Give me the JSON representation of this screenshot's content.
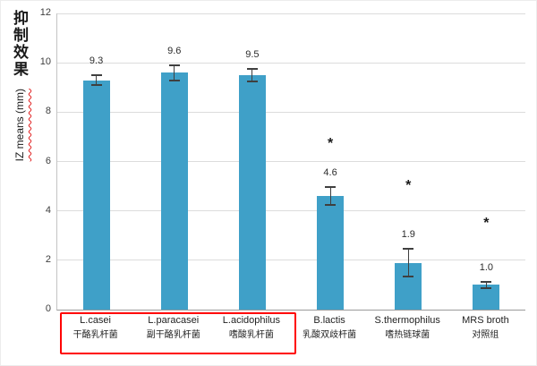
{
  "chart_data": {
    "type": "bar",
    "title": "",
    "ylabel_cn": "抑制效果",
    "ylabel_en": "IZ means (mm)",
    "xlabel": "",
    "ylim": [
      0,
      12
    ],
    "yticks": [
      0,
      2,
      4,
      6,
      8,
      10,
      12
    ],
    "grid": true,
    "legend_position": "none",
    "bar_color": "#3FA0C8",
    "error_bar_color": "#3f3f3f",
    "categories": [
      "L.casei",
      "L.paracasei",
      "L.acidophilus",
      "B.lactis",
      "S.thermophilus",
      "MRS broth"
    ],
    "categories_cn": [
      "干酪乳杆菌",
      "副干酪乳杆菌",
      "嗜酸乳杆菌",
      "乳酸双歧杆菌",
      "嗜热链球菌",
      "对照组"
    ],
    "values": [
      9.3,
      9.6,
      9.5,
      4.6,
      1.9,
      1.0
    ],
    "value_labels": [
      "9.3",
      "9.6",
      "9.5",
      "4.6",
      "1.9",
      "1.0"
    ],
    "errors": [
      0.25,
      0.35,
      0.3,
      0.4,
      0.6,
      0.15
    ],
    "significance": [
      null,
      null,
      null,
      "*",
      "*",
      "*"
    ],
    "asterisk_y": [
      null,
      null,
      null,
      6.8,
      5.1,
      3.6
    ],
    "highlight_box": {
      "color": "#FF0000",
      "covered_categories": [
        "L.casei",
        "L.paracasei",
        "L.acidophilus"
      ]
    }
  }
}
